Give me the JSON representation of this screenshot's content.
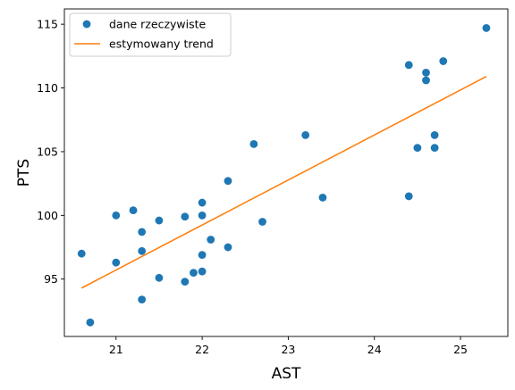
{
  "chart_data": {
    "type": "scatter",
    "xlabel": "AST",
    "ylabel": "PTS",
    "xlim": [
      20.4,
      25.55
    ],
    "ylim": [
      90.5,
      116.2
    ],
    "xticks": [
      21,
      22,
      23,
      24,
      25
    ],
    "yticks": [
      95,
      100,
      105,
      110,
      115
    ],
    "grid": false,
    "legend_position": "upper-left",
    "series": [
      {
        "name": "dane rzeczywiste",
        "kind": "scatter",
        "color": "#1f77b4",
        "points": [
          [
            20.6,
            97.0
          ],
          [
            20.7,
            91.6
          ],
          [
            21.0,
            100.0
          ],
          [
            21.0,
            96.3
          ],
          [
            21.2,
            100.4
          ],
          [
            21.3,
            98.7
          ],
          [
            21.3,
            97.2
          ],
          [
            21.3,
            93.4
          ],
          [
            21.5,
            99.6
          ],
          [
            21.5,
            95.1
          ],
          [
            21.8,
            99.9
          ],
          [
            21.8,
            94.8
          ],
          [
            21.9,
            95.5
          ],
          [
            22.0,
            101.0
          ],
          [
            22.0,
            100.0
          ],
          [
            22.0,
            96.9
          ],
          [
            22.0,
            95.6
          ],
          [
            22.1,
            98.1
          ],
          [
            22.3,
            102.7
          ],
          [
            22.3,
            97.5
          ],
          [
            22.6,
            105.6
          ],
          [
            22.7,
            99.5
          ],
          [
            23.2,
            106.3
          ],
          [
            23.4,
            101.4
          ],
          [
            24.4,
            111.8
          ],
          [
            24.4,
            101.5
          ],
          [
            24.5,
            105.3
          ],
          [
            24.6,
            111.2
          ],
          [
            24.6,
            110.6
          ],
          [
            24.7,
            106.3
          ],
          [
            24.7,
            105.3
          ],
          [
            24.8,
            112.1
          ],
          [
            25.3,
            114.7
          ]
        ]
      },
      {
        "name": "estymowany trend",
        "kind": "line",
        "color": "#ff7f0e",
        "points": [
          [
            20.6,
            94.3
          ],
          [
            25.3,
            110.9
          ]
        ]
      }
    ]
  }
}
